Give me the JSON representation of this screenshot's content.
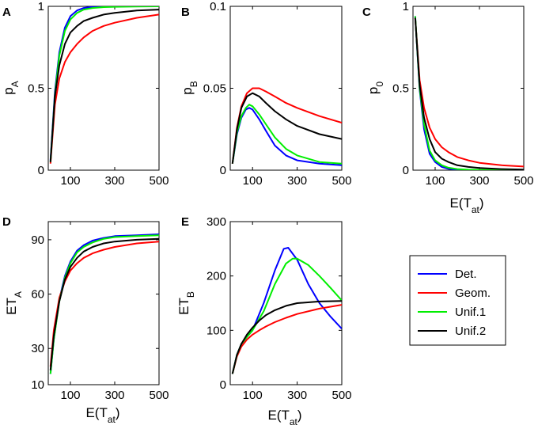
{
  "figure": {
    "legend": [
      {
        "label": "Det.",
        "color": "#0000ff"
      },
      {
        "label": "Geom.",
        "color": "#ff0000"
      },
      {
        "label": "Unif.1",
        "color": "#00ee00"
      },
      {
        "label": "Unif.2",
        "color": "#000000"
      }
    ]
  },
  "chart_data": [
    {
      "panel": "A",
      "type": "line",
      "ylabel": "p",
      "ylabel_sub": "A",
      "xlabel": "",
      "xlabel_sub": "",
      "xlim": [
        0,
        500
      ],
      "ylim": [
        0,
        1
      ],
      "xticks": [
        "100",
        "300",
        "500"
      ],
      "xtick_values": [
        100,
        300,
        500
      ],
      "yticks": [
        "0",
        "0.5",
        "1"
      ],
      "ytick_values": [
        0,
        0.5,
        1
      ],
      "series": [
        {
          "name": "Det.",
          "color": "#0000ff",
          "x": [
            10,
            30,
            50,
            75,
            100,
            130,
            160,
            200,
            250,
            300,
            400,
            500
          ],
          "y": [
            0.06,
            0.48,
            0.72,
            0.87,
            0.94,
            0.975,
            0.99,
            0.997,
            1.0,
            1.0,
            1.0,
            1.0
          ]
        },
        {
          "name": "Geom.",
          "color": "#ff0000",
          "x": [
            10,
            30,
            50,
            75,
            100,
            130,
            160,
            200,
            250,
            300,
            400,
            500
          ],
          "y": [
            0.04,
            0.4,
            0.56,
            0.66,
            0.72,
            0.77,
            0.81,
            0.85,
            0.88,
            0.9,
            0.93,
            0.95
          ]
        },
        {
          "name": "Unif.1",
          "color": "#00ee00",
          "x": [
            10,
            30,
            50,
            75,
            100,
            130,
            160,
            200,
            250,
            300,
            400,
            500
          ],
          "y": [
            0.05,
            0.46,
            0.7,
            0.85,
            0.92,
            0.96,
            0.98,
            0.99,
            0.995,
            0.997,
            0.999,
            1.0
          ]
        },
        {
          "name": "Unif.2",
          "color": "#000000",
          "x": [
            10,
            30,
            50,
            75,
            100,
            130,
            160,
            200,
            250,
            300,
            400,
            500
          ],
          "y": [
            0.05,
            0.45,
            0.64,
            0.77,
            0.84,
            0.88,
            0.91,
            0.93,
            0.95,
            0.96,
            0.975,
            0.98
          ]
        }
      ]
    },
    {
      "panel": "B",
      "type": "line",
      "ylabel": "p",
      "ylabel_sub": "B",
      "xlabel": "",
      "xlabel_sub": "",
      "xlim": [
        0,
        500
      ],
      "ylim": [
        0,
        0.1
      ],
      "xticks": [
        "100",
        "300",
        "500"
      ],
      "xtick_values": [
        100,
        300,
        500
      ],
      "yticks": [
        "0",
        "0.05",
        "0.1"
      ],
      "ytick_values": [
        0,
        0.05,
        0.1
      ],
      "series": [
        {
          "name": "Det.",
          "color": "#0000ff",
          "x": [
            10,
            30,
            50,
            70,
            85,
            100,
            130,
            160,
            200,
            250,
            300,
            400,
            500
          ],
          "y": [
            0.004,
            0.022,
            0.032,
            0.037,
            0.038,
            0.037,
            0.031,
            0.024,
            0.015,
            0.009,
            0.006,
            0.004,
            0.003
          ]
        },
        {
          "name": "Geom.",
          "color": "#ff0000",
          "x": [
            10,
            30,
            50,
            75,
            100,
            130,
            160,
            200,
            250,
            300,
            400,
            500
          ],
          "y": [
            0.004,
            0.026,
            0.039,
            0.047,
            0.05,
            0.05,
            0.048,
            0.045,
            0.041,
            0.038,
            0.033,
            0.029
          ]
        },
        {
          "name": "Unif.1",
          "color": "#00ee00",
          "x": [
            10,
            30,
            50,
            70,
            85,
            100,
            130,
            160,
            200,
            250,
            300,
            400,
            500
          ],
          "y": [
            0.004,
            0.023,
            0.033,
            0.038,
            0.04,
            0.039,
            0.034,
            0.028,
            0.02,
            0.013,
            0.009,
            0.005,
            0.004
          ]
        },
        {
          "name": "Unif.2",
          "color": "#000000",
          "x": [
            10,
            30,
            50,
            75,
            100,
            130,
            160,
            200,
            250,
            300,
            400,
            500
          ],
          "y": [
            0.004,
            0.025,
            0.038,
            0.045,
            0.047,
            0.045,
            0.041,
            0.036,
            0.031,
            0.027,
            0.022,
            0.019
          ]
        }
      ]
    },
    {
      "panel": "C",
      "type": "line",
      "ylabel": "p",
      "ylabel_sub": "0",
      "xlabel": "E(T",
      "xlabel_sub": "at",
      "xlim": [
        0,
        500
      ],
      "ylim": [
        0,
        1
      ],
      "xticks": [
        "100",
        "300",
        "500"
      ],
      "xtick_values": [
        100,
        300,
        500
      ],
      "yticks": [
        "0",
        "0.5",
        "1"
      ],
      "ytick_values": [
        0,
        0.5,
        1
      ],
      "series": [
        {
          "name": "Det.",
          "color": "#0000ff",
          "x": [
            10,
            30,
            50,
            75,
            100,
            130,
            160,
            200,
            250,
            300,
            400,
            500
          ],
          "y": [
            0.94,
            0.49,
            0.25,
            0.1,
            0.05,
            0.02,
            0.008,
            0.002,
            0.0,
            0.0,
            0.0,
            0.0
          ]
        },
        {
          "name": "Geom.",
          "color": "#ff0000",
          "x": [
            10,
            30,
            50,
            75,
            100,
            130,
            160,
            200,
            250,
            300,
            400,
            500
          ],
          "y": [
            0.93,
            0.55,
            0.38,
            0.26,
            0.19,
            0.14,
            0.11,
            0.08,
            0.06,
            0.045,
            0.03,
            0.022
          ]
        },
        {
          "name": "Unif.1",
          "color": "#00ee00",
          "x": [
            10,
            30,
            50,
            75,
            100,
            130,
            160,
            200,
            250,
            300,
            400,
            500
          ],
          "y": [
            0.94,
            0.5,
            0.28,
            0.12,
            0.06,
            0.03,
            0.015,
            0.007,
            0.003,
            0.002,
            0.001,
            0.0
          ]
        },
        {
          "name": "Unif.2",
          "color": "#000000",
          "x": [
            10,
            30,
            50,
            75,
            100,
            130,
            160,
            200,
            250,
            300,
            400,
            500
          ],
          "y": [
            0.93,
            0.52,
            0.32,
            0.19,
            0.11,
            0.07,
            0.05,
            0.03,
            0.02,
            0.013,
            0.007,
            0.004
          ]
        }
      ]
    },
    {
      "panel": "D",
      "type": "line",
      "ylabel": "ET",
      "ylabel_sub": "A",
      "xlabel": "E(T",
      "xlabel_sub": "at",
      "xlim": [
        0,
        500
      ],
      "ylim": [
        10,
        100
      ],
      "xticks": [
        "100",
        "300",
        "500"
      ],
      "xtick_values": [
        100,
        300,
        500
      ],
      "yticks": [
        "10",
        "30",
        "60",
        "90"
      ],
      "ytick_values": [
        10,
        30,
        60,
        90
      ],
      "series": [
        {
          "name": "Det.",
          "color": "#0000ff",
          "x": [
            10,
            25,
            50,
            75,
            100,
            130,
            160,
            200,
            250,
            300,
            400,
            500
          ],
          "y": [
            16,
            35,
            57,
            70,
            78,
            84,
            87,
            89.5,
            91,
            92,
            92.5,
            93
          ]
        },
        {
          "name": "Geom.",
          "color": "#ff0000",
          "x": [
            10,
            25,
            50,
            75,
            100,
            130,
            160,
            200,
            250,
            300,
            400,
            500
          ],
          "y": [
            20,
            40,
            58,
            67,
            73,
            77,
            80,
            82.5,
            84.5,
            86,
            88,
            89
          ]
        },
        {
          "name": "Unif.1",
          "color": "#00ee00",
          "x": [
            10,
            25,
            50,
            75,
            100,
            130,
            160,
            200,
            250,
            300,
            400,
            500
          ],
          "y": [
            16,
            35,
            56,
            69,
            77,
            83,
            86,
            88.5,
            90.5,
            91.5,
            92,
            92.5
          ]
        },
        {
          "name": "Unif.2",
          "color": "#000000",
          "x": [
            10,
            25,
            50,
            75,
            100,
            130,
            160,
            200,
            250,
            300,
            400,
            500
          ],
          "y": [
            18,
            37,
            56,
            68,
            75,
            80,
            83.5,
            86,
            88,
            89,
            90,
            90.5
          ]
        }
      ]
    },
    {
      "panel": "E",
      "type": "line",
      "ylabel": "ET",
      "ylabel_sub": "B",
      "xlabel": "E(T",
      "xlabel_sub": "at",
      "xlim": [
        0,
        500
      ],
      "ylim": [
        0,
        300
      ],
      "xticks": [
        "100",
        "300",
        "500"
      ],
      "xtick_values": [
        100,
        300,
        500
      ],
      "yticks": [
        "0",
        "100",
        "200",
        "300"
      ],
      "ytick_values": [
        0,
        100,
        200,
        300
      ],
      "series": [
        {
          "name": "Det.",
          "color": "#0000ff",
          "x": [
            10,
            30,
            50,
            75,
            100,
            150,
            200,
            240,
            260,
            300,
            350,
            400,
            450,
            500
          ],
          "y": [
            20,
            55,
            75,
            88,
            100,
            150,
            210,
            250,
            252,
            230,
            185,
            150,
            125,
            103
          ]
        },
        {
          "name": "Geom.",
          "color": "#ff0000",
          "x": [
            10,
            30,
            50,
            75,
            100,
            130,
            160,
            200,
            250,
            300,
            400,
            500
          ],
          "y": [
            20,
            52,
            70,
            83,
            92,
            100,
            107,
            115,
            123,
            130,
            140,
            147
          ]
        },
        {
          "name": "Unif.1",
          "color": "#00ee00",
          "x": [
            10,
            30,
            50,
            75,
            100,
            150,
            200,
            250,
            280,
            300,
            350,
            400,
            450,
            500
          ],
          "y": [
            20,
            55,
            75,
            88,
            100,
            135,
            185,
            223,
            232,
            232,
            220,
            200,
            178,
            155
          ]
        },
        {
          "name": "Unif.2",
          "color": "#000000",
          "x": [
            10,
            30,
            50,
            75,
            100,
            130,
            160,
            200,
            250,
            300,
            400,
            500
          ],
          "y": [
            20,
            55,
            75,
            92,
            105,
            118,
            128,
            137,
            145,
            150,
            153,
            154
          ]
        }
      ]
    }
  ]
}
